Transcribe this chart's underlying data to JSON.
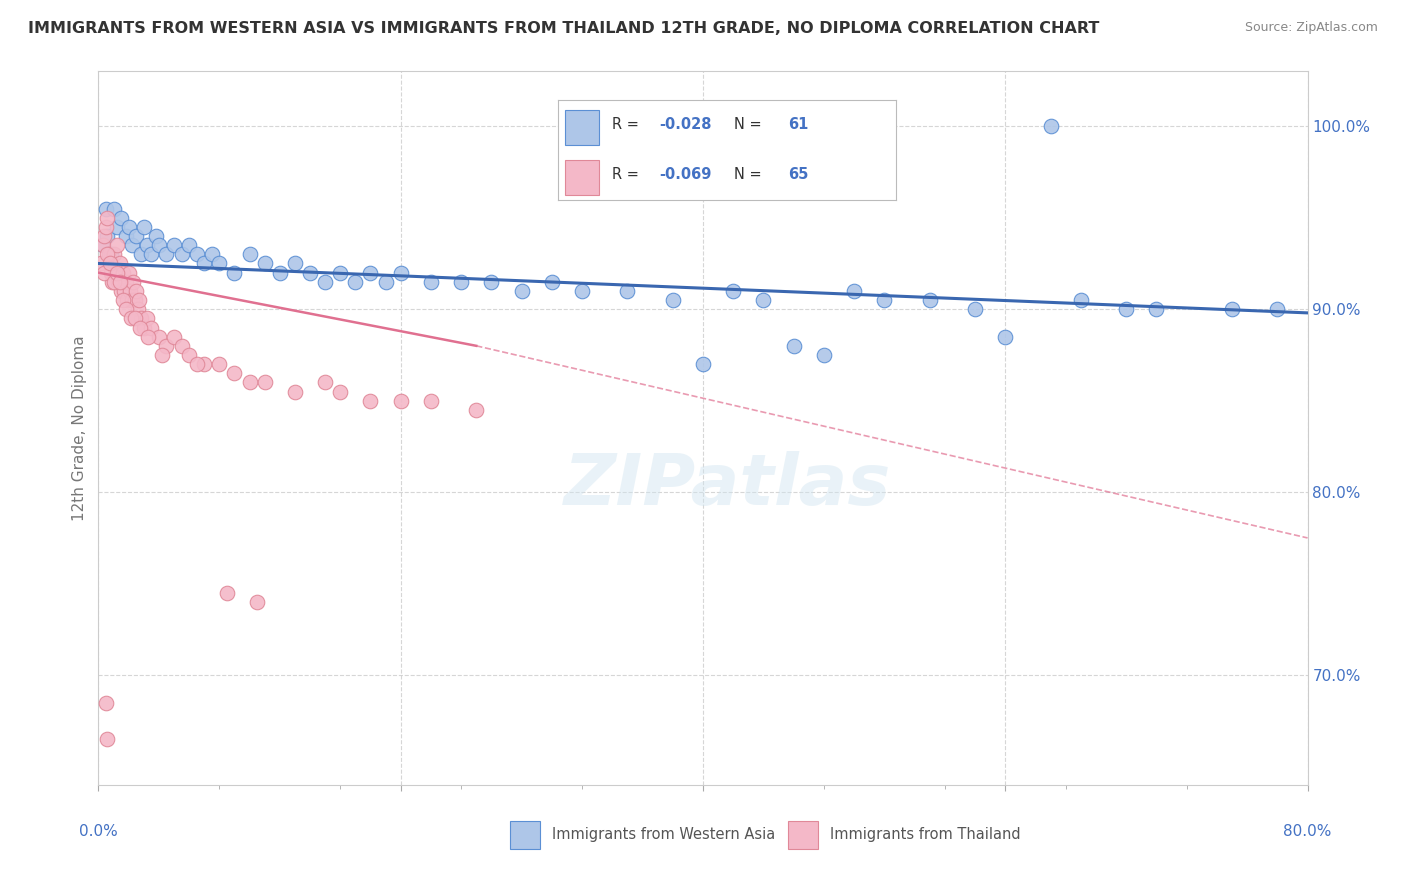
{
  "title": "IMMIGRANTS FROM WESTERN ASIA VS IMMIGRANTS FROM THAILAND 12TH GRADE, NO DIPLOMA CORRELATION CHART",
  "source": "Source: ZipAtlas.com",
  "ylabel": "12th Grade, No Diploma",
  "legend_label_blue": "Immigrants from Western Asia",
  "legend_label_pink": "Immigrants from Thailand",
  "r_blue": -0.028,
  "n_blue": 61,
  "r_pink": -0.069,
  "n_pink": 65,
  "blue_color": "#aec6e8",
  "pink_color": "#f4b8c8",
  "blue_edge_color": "#5b8fd4",
  "pink_edge_color": "#e08898",
  "blue_line_color": "#3a67b0",
  "pink_line_color": "#e07090",
  "blue_scatter": [
    [
      0.3,
      93.5
    ],
    [
      0.5,
      95.5
    ],
    [
      0.6,
      94.0
    ],
    [
      0.8,
      93.0
    ],
    [
      1.0,
      95.5
    ],
    [
      1.2,
      94.5
    ],
    [
      1.5,
      95.0
    ],
    [
      1.8,
      94.0
    ],
    [
      2.0,
      94.5
    ],
    [
      2.2,
      93.5
    ],
    [
      2.5,
      94.0
    ],
    [
      2.8,
      93.0
    ],
    [
      3.0,
      94.5
    ],
    [
      3.2,
      93.5
    ],
    [
      3.5,
      93.0
    ],
    [
      3.8,
      94.0
    ],
    [
      4.0,
      93.5
    ],
    [
      4.5,
      93.0
    ],
    [
      5.0,
      93.5
    ],
    [
      5.5,
      93.0
    ],
    [
      6.0,
      93.5
    ],
    [
      6.5,
      93.0
    ],
    [
      7.0,
      92.5
    ],
    [
      7.5,
      93.0
    ],
    [
      8.0,
      92.5
    ],
    [
      9.0,
      92.0
    ],
    [
      10.0,
      93.0
    ],
    [
      11.0,
      92.5
    ],
    [
      12.0,
      92.0
    ],
    [
      13.0,
      92.5
    ],
    [
      14.0,
      92.0
    ],
    [
      15.0,
      91.5
    ],
    [
      16.0,
      92.0
    ],
    [
      17.0,
      91.5
    ],
    [
      18.0,
      92.0
    ],
    [
      19.0,
      91.5
    ],
    [
      20.0,
      92.0
    ],
    [
      22.0,
      91.5
    ],
    [
      24.0,
      91.5
    ],
    [
      26.0,
      91.5
    ],
    [
      28.0,
      91.0
    ],
    [
      30.0,
      91.5
    ],
    [
      32.0,
      91.0
    ],
    [
      35.0,
      91.0
    ],
    [
      38.0,
      90.5
    ],
    [
      40.0,
      87.0
    ],
    [
      42.0,
      91.0
    ],
    [
      44.0,
      90.5
    ],
    [
      46.0,
      88.0
    ],
    [
      48.0,
      87.5
    ],
    [
      50.0,
      91.0
    ],
    [
      52.0,
      90.5
    ],
    [
      55.0,
      90.5
    ],
    [
      58.0,
      90.0
    ],
    [
      60.0,
      88.5
    ],
    [
      63.0,
      100.0
    ],
    [
      65.0,
      90.5
    ],
    [
      68.0,
      90.0
    ],
    [
      70.0,
      90.0
    ],
    [
      75.0,
      90.0
    ],
    [
      78.0,
      90.0
    ]
  ],
  "pink_scatter": [
    [
      0.2,
      92.5
    ],
    [
      0.3,
      93.5
    ],
    [
      0.4,
      94.0
    ],
    [
      0.5,
      94.5
    ],
    [
      0.6,
      95.0
    ],
    [
      0.7,
      93.0
    ],
    [
      0.8,
      92.0
    ],
    [
      0.9,
      91.5
    ],
    [
      1.0,
      93.0
    ],
    [
      1.1,
      92.0
    ],
    [
      1.2,
      93.5
    ],
    [
      1.3,
      91.5
    ],
    [
      1.4,
      92.5
    ],
    [
      1.5,
      91.0
    ],
    [
      1.6,
      92.0
    ],
    [
      1.7,
      91.0
    ],
    [
      1.8,
      91.5
    ],
    [
      1.9,
      90.5
    ],
    [
      2.0,
      92.0
    ],
    [
      2.1,
      91.0
    ],
    [
      2.2,
      90.5
    ],
    [
      2.3,
      91.5
    ],
    [
      2.4,
      90.5
    ],
    [
      2.5,
      91.0
    ],
    [
      2.6,
      90.0
    ],
    [
      2.7,
      90.5
    ],
    [
      2.8,
      89.5
    ],
    [
      3.0,
      89.0
    ],
    [
      3.2,
      89.5
    ],
    [
      3.5,
      89.0
    ],
    [
      4.0,
      88.5
    ],
    [
      4.5,
      88.0
    ],
    [
      5.0,
      88.5
    ],
    [
      5.5,
      88.0
    ],
    [
      6.0,
      87.5
    ],
    [
      7.0,
      87.0
    ],
    [
      8.0,
      87.0
    ],
    [
      9.0,
      86.5
    ],
    [
      10.0,
      86.0
    ],
    [
      11.0,
      86.0
    ],
    [
      13.0,
      85.5
    ],
    [
      15.0,
      86.0
    ],
    [
      16.0,
      85.5
    ],
    [
      18.0,
      85.0
    ],
    [
      20.0,
      85.0
    ],
    [
      22.0,
      85.0
    ],
    [
      25.0,
      84.5
    ],
    [
      0.35,
      92.0
    ],
    [
      0.55,
      93.0
    ],
    [
      0.75,
      92.5
    ],
    [
      1.05,
      91.5
    ],
    [
      1.25,
      92.0
    ],
    [
      1.45,
      91.5
    ],
    [
      1.65,
      90.5
    ],
    [
      1.85,
      90.0
    ],
    [
      2.15,
      89.5
    ],
    [
      2.45,
      89.5
    ],
    [
      2.75,
      89.0
    ],
    [
      3.3,
      88.5
    ],
    [
      4.2,
      87.5
    ],
    [
      6.5,
      87.0
    ],
    [
      8.5,
      74.5
    ],
    [
      10.5,
      74.0
    ],
    [
      0.5,
      68.5
    ],
    [
      0.6,
      66.5
    ]
  ],
  "xlim": [
    0.0,
    80.0
  ],
  "ylim": [
    64.0,
    103.0
  ],
  "yticks": [
    70.0,
    80.0,
    90.0,
    100.0
  ],
  "xtick_minor_count": 10,
  "blue_trend": [
    0.0,
    92.5,
    80.0,
    89.8
  ],
  "pink_trend_solid": [
    0.0,
    92.0,
    25.0,
    88.0
  ],
  "pink_trend_dash": [
    25.0,
    88.0,
    80.0,
    77.5
  ]
}
